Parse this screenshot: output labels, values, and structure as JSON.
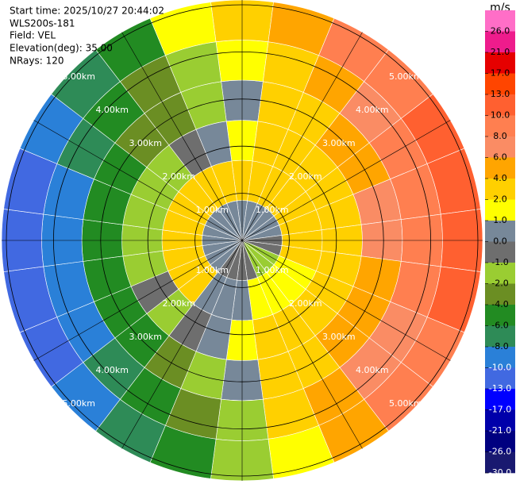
{
  "header": {
    "lines": [
      "Start time: 2025/10/27 20:44:02",
      "WLS200s-181",
      "Field: VEL",
      "Elevation(deg): 35.00",
      "NRays: 120"
    ]
  },
  "chart_data": {
    "type": "ppi",
    "range_rings": [
      {
        "value": 1,
        "label": "1.00km"
      },
      {
        "value": 2,
        "label": "2.00km"
      },
      {
        "value": 3,
        "label": "3.00km"
      },
      {
        "value": 4,
        "label": "4.00km"
      },
      {
        "value": 5,
        "label": "5.00km"
      }
    ],
    "range_edges": [
      0,
      0.85,
      1.7,
      2.55,
      3.4,
      4.25,
      5.1
    ],
    "rays": [
      {
        "azimuth": 0,
        "values": [
          0.5,
          2.5,
          1.5,
          0.5,
          1.5,
          3
        ]
      },
      {
        "azimuth": 15,
        "values": [
          0.5,
          2.5,
          2.5,
          2,
          3,
          5
        ]
      },
      {
        "azimuth": 30,
        "values": [
          0.5,
          2.5,
          3,
          3,
          5,
          8
        ]
      },
      {
        "azimuth": 45,
        "values": [
          0.5,
          2.5,
          3,
          4,
          7,
          9
        ]
      },
      {
        "azimuth": 60,
        "values": [
          0.5,
          2.5,
          3,
          5,
          8,
          11
        ]
      },
      {
        "azimuth": 75,
        "values": [
          0.5,
          2.5,
          3.5,
          6,
          9,
          11
        ]
      },
      {
        "azimuth": 90,
        "values": [
          -0.5,
          2.5,
          3.5,
          6,
          9,
          11
        ]
      },
      {
        "azimuth": 105,
        "values": [
          -0.5,
          2.5,
          3.5,
          5,
          8,
          10
        ]
      },
      {
        "azimuth": 120,
        "values": [
          -1.5,
          1.5,
          3.5,
          5,
          7,
          9
        ]
      },
      {
        "azimuth": 135,
        "values": [
          -1.5,
          1.5,
          3,
          4,
          6,
          8
        ]
      },
      {
        "azimuth": 150,
        "values": [
          -1.5,
          1.5,
          2.5,
          3,
          5,
          5
        ]
      },
      {
        "azimuth": 165,
        "values": [
          -0.5,
          1.5,
          2.5,
          2,
          3,
          1.5
        ]
      },
      {
        "azimuth": 180,
        "values": [
          -0.5,
          0.5,
          1.5,
          0.5,
          -1.5,
          -1.5
        ]
      },
      {
        "azimuth": 195,
        "values": [
          -0.5,
          0.5,
          0.5,
          -1.5,
          -3,
          -5
        ]
      },
      {
        "azimuth": 210,
        "values": [
          -0.5,
          0.5,
          -0.5,
          -3,
          -5,
          -7
        ]
      },
      {
        "azimuth": 225,
        "values": [
          0.5,
          2.5,
          -1.5,
          -5,
          -7,
          -9
        ]
      },
      {
        "azimuth": 240,
        "values": [
          0.5,
          2.5,
          -0.5,
          -5,
          -9,
          -11
        ]
      },
      {
        "azimuth": 255,
        "values": [
          0.5,
          2.5,
          -1.5,
          -5,
          -9,
          -11
        ]
      },
      {
        "azimuth": 270,
        "values": [
          0.5,
          2.5,
          -1.5,
          -5,
          -9,
          -11
        ]
      },
      {
        "azimuth": 285,
        "values": [
          0.5,
          2.5,
          -1.5,
          -5,
          -9,
          -11
        ]
      },
      {
        "azimuth": 300,
        "values": [
          0.5,
          2.5,
          -1.5,
          -5,
          -7,
          -9
        ]
      },
      {
        "azimuth": 315,
        "values": [
          0.5,
          2.5,
          -1.5,
          -3,
          -5,
          -7
        ]
      },
      {
        "azimuth": 330,
        "values": [
          0.5,
          2.5,
          -0.5,
          -3,
          -3,
          -5
        ]
      },
      {
        "azimuth": 345,
        "values": [
          0.5,
          2.5,
          0.5,
          -1.5,
          -1.5,
          1.5
        ]
      }
    ],
    "colorbar": {
      "title": "m/s",
      "ticks": [
        {
          "value": 26,
          "label": "26.0"
        },
        {
          "value": 21,
          "label": "21.0"
        },
        {
          "value": 17,
          "label": "17.0"
        },
        {
          "value": 13,
          "label": "13.0"
        },
        {
          "value": 10,
          "label": "10.0"
        },
        {
          "value": 8,
          "label": "8.0"
        },
        {
          "value": 6,
          "label": "6.0"
        },
        {
          "value": 4,
          "label": "4.0"
        },
        {
          "value": 2,
          "label": "2.0"
        },
        {
          "value": 1,
          "label": "1.0"
        },
        {
          "value": 0,
          "label": "0.0"
        },
        {
          "value": -1,
          "label": "-1.0"
        },
        {
          "value": -2,
          "label": "-2.0"
        },
        {
          "value": -4,
          "label": "-4.0"
        },
        {
          "value": -6,
          "label": "-6.0"
        },
        {
          "value": -8,
          "label": "-8.0"
        },
        {
          "value": -10,
          "label": "-10.0"
        },
        {
          "value": -13,
          "label": "-13.0"
        },
        {
          "value": -17,
          "label": "-17.0"
        },
        {
          "value": -21,
          "label": "-21.0"
        },
        {
          "value": -26,
          "label": "-26.0"
        },
        {
          "value": -30,
          "label": "-30.0"
        }
      ],
      "colors": [
        "#ff6ec7",
        "#ee1c8c",
        "#e60000",
        "#ff4500",
        "#ff6030",
        "#ff7f50",
        "#fa8c64",
        "#ffa500",
        "#ffd000",
        "#ffff00",
        "#778899",
        "#6e6e6e",
        "#9acd32",
        "#6b8e23",
        "#228b22",
        "#2e8b57",
        "#2a80d8",
        "#4169e1",
        "#0000ff",
        "#0000aa",
        "#000080",
        "#191970"
      ]
    }
  }
}
